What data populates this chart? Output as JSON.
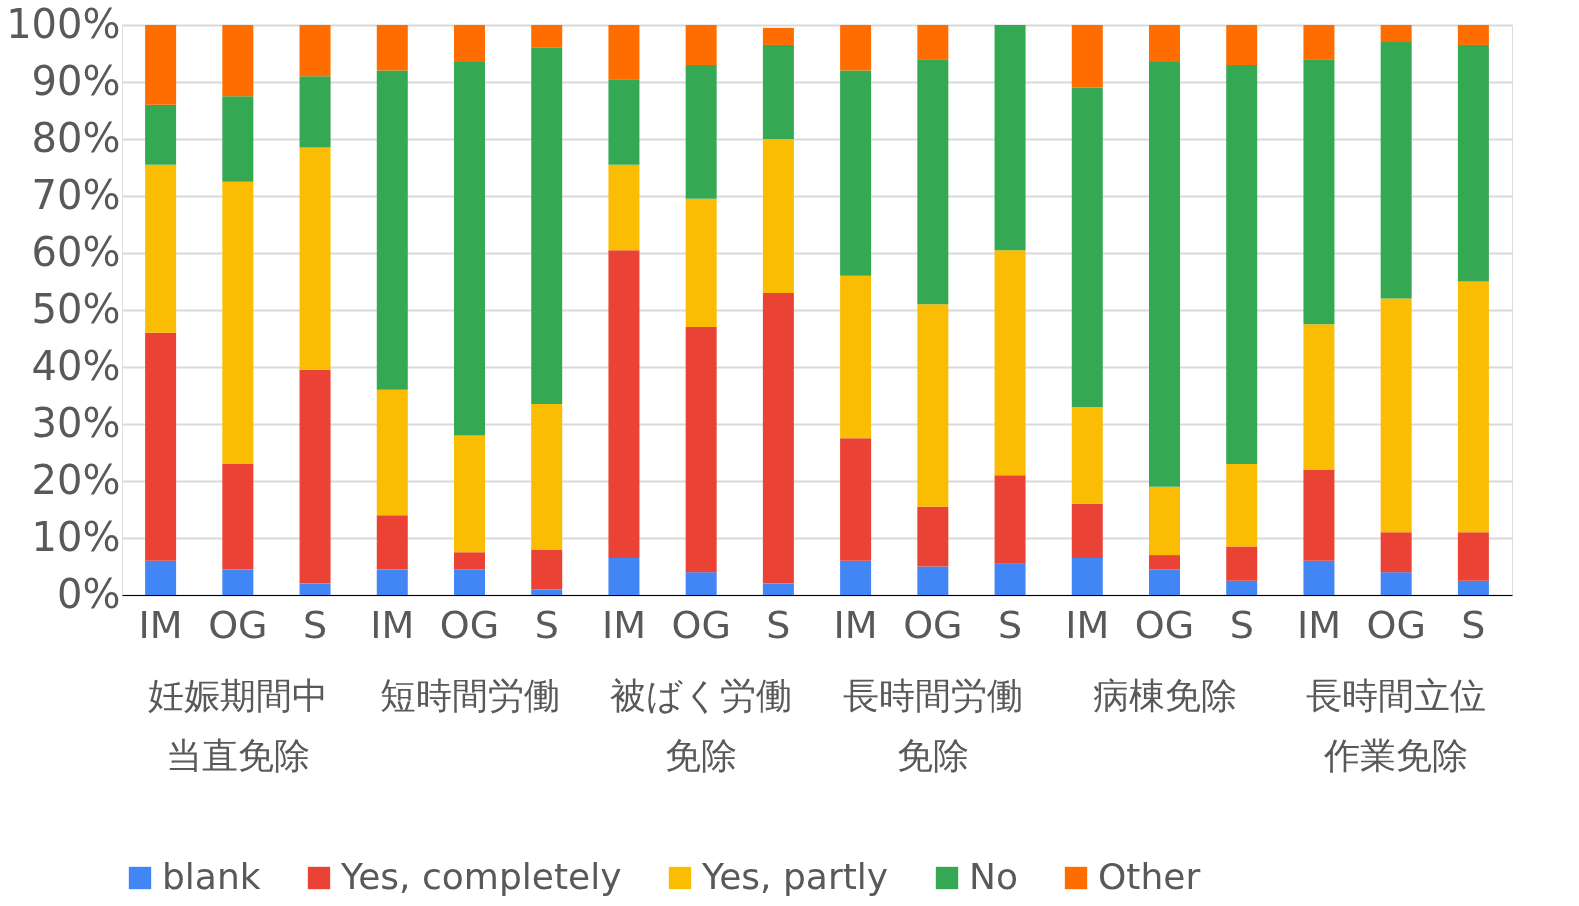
{
  "chart_data": {
    "type": "bar",
    "stacked": true,
    "categories": [
      "IM",
      "OG",
      "S",
      "IM",
      "OG",
      "S",
      "IM",
      "OG",
      "S",
      "IM",
      "OG",
      "S",
      "IM",
      "OG",
      "S",
      "IM",
      "OG",
      "S"
    ],
    "annotations": [
      "妊娠期間中当直免除",
      "短時間労働",
      "被ばく労働免除",
      "長時間労働免除",
      "病棟免除",
      "長時間立位作業免除"
    ],
    "series": [
      {
        "name": "blank",
        "color": "#4285f4",
        "values": [
          6,
          4.5,
          2,
          4.5,
          4.5,
          1,
          6.5,
          4,
          2,
          6,
          5,
          5.5,
          6.5,
          4.5,
          2.5,
          6,
          4,
          2.5
        ]
      },
      {
        "name": "Yes, completely",
        "color": "#ea4335",
        "values": [
          40,
          18.5,
          37.5,
          9.5,
          3,
          7,
          54,
          43,
          51,
          21.5,
          10.5,
          15.5,
          9.5,
          2.5,
          6,
          16,
          7,
          8.5
        ]
      },
      {
        "name": "Yes, partly",
        "color": "#fbbc04",
        "values": [
          29.5,
          49.5,
          39,
          22,
          20.5,
          25.5,
          15,
          22.5,
          27,
          28.5,
          35.5,
          39.5,
          17,
          12,
          14.5,
          25.5,
          41,
          44
        ]
      },
      {
        "name": "No",
        "color": "#34a853",
        "values": [
          10.5,
          15,
          12.5,
          56,
          65.5,
          62.5,
          15,
          23.5,
          16.5,
          36,
          43,
          39.5,
          56,
          74.5,
          70,
          46.5,
          45,
          41.5
        ]
      },
      {
        "name": "Other",
        "color": "#ff6d01",
        "values": [
          14,
          12.5,
          9,
          8,
          6.5,
          4,
          9.5,
          7,
          3,
          8,
          6,
          0,
          11,
          6.5,
          7,
          6,
          3,
          3.5
        ]
      }
    ],
    "ylim": [
      0,
      100
    ],
    "yticks": [
      {
        "value": 0,
        "label": "0%"
      },
      {
        "value": 10,
        "label": "10%"
      },
      {
        "value": 20,
        "label": "20%"
      },
      {
        "value": 30,
        "label": "30%"
      },
      {
        "value": 40,
        "label": "40%"
      },
      {
        "value": 50,
        "label": "50%"
      },
      {
        "value": 60,
        "label": "60%"
      },
      {
        "value": 70,
        "label": "70%"
      },
      {
        "value": 80,
        "label": "80%"
      },
      {
        "value": 90,
        "label": "90%"
      },
      {
        "value": 100,
        "label": "100%"
      }
    ],
    "grid": "y",
    "legend": "bottom"
  }
}
